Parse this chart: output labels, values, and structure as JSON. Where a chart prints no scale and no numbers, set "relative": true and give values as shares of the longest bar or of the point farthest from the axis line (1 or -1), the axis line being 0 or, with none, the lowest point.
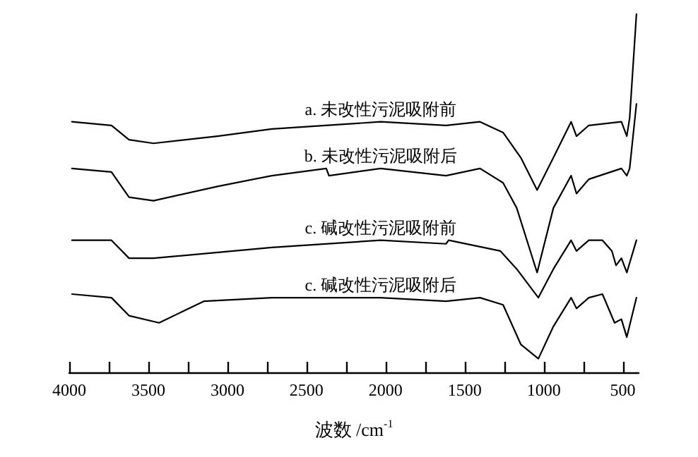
{
  "chart_data": {
    "type": "line",
    "relative": true,
    "xlabel": "波数 /cm$^{-1}$",
    "xlim": [
      4000,
      400
    ],
    "xticks": [
      4000,
      {
        "value": 3750,
        "label": null
      },
      3500,
      {
        "value": 3250,
        "label": null
      },
      3000,
      {
        "value": 2750,
        "label": null
      },
      2500,
      {
        "value": 2250,
        "label": null
      },
      2000,
      {
        "value": 1750,
        "label": null
      },
      1500,
      {
        "value": 1250,
        "label": null
      },
      1000,
      {
        "value": 750,
        "label": null
      },
      500
    ],
    "grid": false,
    "legend": false,
    "marker": "none",
    "line_style": "solid",
    "series": [
      {
        "name": "a. 未改性污泥吸附前",
        "color": "#000000",
        "x": [
          3983,
          3733,
          3622,
          3467,
          3063,
          2719,
          2031,
          1618,
          1403,
          1257,
          1145,
          1042,
          939,
          827,
          793,
          715,
          509,
          475,
          457,
          414
        ],
        "values": [
          0.7,
          0.69,
          0.65,
          0.64,
          0.66,
          0.68,
          0.7,
          0.69,
          0.7,
          0.67,
          0.6,
          0.51,
          0.6,
          0.7,
          0.66,
          0.69,
          0.7,
          0.66,
          0.71,
          1
        ]
      },
      {
        "name": "b. 未改性污泥吸附后",
        "color": "#000000",
        "x": [
          3983,
          3733,
          3622,
          3467,
          3063,
          2719,
          2375,
          2358,
          2031,
          1618,
          1403,
          1257,
          1171,
          1042,
          939,
          827,
          793,
          715,
          509,
          475,
          457,
          414
        ],
        "values": [
          0.57,
          0.56,
          0.49,
          0.48,
          0.52,
          0.55,
          0.57,
          0.55,
          0.57,
          0.55,
          0.57,
          0.53,
          0.46,
          0.28,
          0.46,
          0.55,
          0.5,
          0.54,
          0.57,
          0.55,
          0.57,
          0.75
        ]
      },
      {
        "name": "c. 碱改性污泥吸附前",
        "color": "#000000",
        "x": [
          3983,
          3733,
          3622,
          3467,
          2719,
          2031,
          1618,
          1601,
          1274,
          1171,
          1034,
          939,
          827,
          793,
          715,
          629,
          569,
          543,
          509,
          475,
          414
        ],
        "values": [
          0.37,
          0.37,
          0.32,
          0.32,
          0.35,
          0.37,
          0.36,
          0.37,
          0.34,
          0.29,
          0.21,
          0.29,
          0.37,
          0.34,
          0.37,
          0.37,
          0.34,
          0.3,
          0.32,
          0.28,
          0.37
        ]
      },
      {
        "name": "c. 碱改性污泥吸附后",
        "color": "#000000",
        "x": [
          3983,
          3733,
          3622,
          3432,
          3149,
          2719,
          2031,
          1618,
          1403,
          1257,
          1145,
          1034,
          939,
          827,
          793,
          715,
          629,
          552,
          509,
          475,
          414
        ],
        "values": [
          0.22,
          0.21,
          0.16,
          0.14,
          0.2,
          0.21,
          0.21,
          0.2,
          0.21,
          0.19,
          0.08,
          0.04,
          0.13,
          0.21,
          0.18,
          0.21,
          0.22,
          0.14,
          0.15,
          0.1,
          0.21
        ]
      }
    ]
  }
}
